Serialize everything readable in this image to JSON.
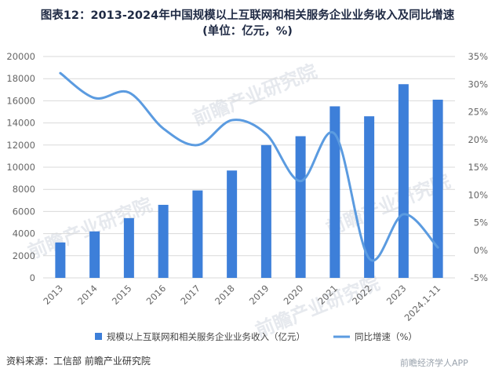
{
  "title": {
    "line1": "图表12：2013-2024年中国规模以上互联网和相关服务企业业务收入及同比增速",
    "line2": "(单位：亿元，%)"
  },
  "source": "资料来源：工信部 前瞻产业研究院",
  "watermark": {
    "text": "前瞻产业研究院",
    "corner": "前瞻经济学人APP"
  },
  "colors": {
    "bar": "#3d7fd9",
    "line": "#5b9be0",
    "grid": "#d9d9d9",
    "watermark": "#e6e9ee"
  },
  "chart_data": {
    "type": "bar",
    "categories": [
      "2013",
      "2014",
      "2015",
      "2016",
      "2017",
      "2018",
      "2019",
      "2020",
      "2021",
      "2022",
      "2023",
      "2024.1-11"
    ],
    "series": [
      {
        "name": "规模以上互联网和相关服务企业业务收入（亿元）",
        "type": "bar",
        "axis": "left",
        "values": [
          3200,
          4200,
          5400,
          6600,
          7900,
          9700,
          12000,
          12800,
          15500,
          14600,
          17500,
          16100
        ]
      },
      {
        "name": "同比增速（%）",
        "type": "line",
        "axis": "right",
        "smooth": true,
        "values": [
          32,
          27.5,
          28.5,
          22,
          19,
          23.5,
          21,
          12.5,
          21,
          -1.5,
          6.5,
          0.5
        ]
      }
    ],
    "y_left": {
      "min": 0,
      "max": 20000,
      "step": 2000,
      "ticks": [
        "0",
        "2000",
        "4000",
        "6000",
        "8000",
        "10000",
        "12000",
        "14000",
        "16000",
        "18000",
        "20000"
      ]
    },
    "y_right": {
      "min": -5,
      "max": 35,
      "step": 5,
      "ticks": [
        "-5%",
        "0%",
        "5%",
        "10%",
        "15%",
        "20%",
        "25%",
        "30%",
        "35%"
      ]
    },
    "grid": true,
    "legend_position": "bottom"
  }
}
